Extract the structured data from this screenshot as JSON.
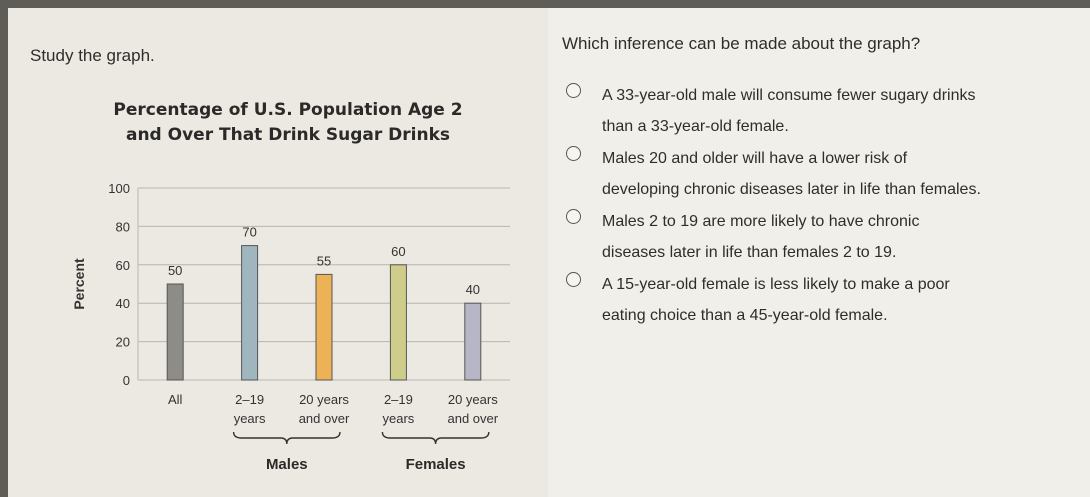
{
  "prompt": "Study the graph.",
  "chart_title": [
    "Percentage of U.S. Population Age 2",
    "and Over That Drink Sugar Drinks"
  ],
  "question": "Which inference can be made about the graph?",
  "options": [
    {
      "lines": [
        "A 33-year-old male will consume fewer sugary drinks",
        "than a 33-year-old female."
      ]
    },
    {
      "lines": [
        "Males 20 and older will have a lower risk of",
        "developing chronic diseases later in life than females."
      ]
    },
    {
      "lines": [
        "Males 2 to 19 are more likely to have chronic",
        "diseases later in life than females 2 to 19."
      ]
    },
    {
      "lines": [
        "A 15-year-old female is less likely to make a poor",
        "eating choice than a 45-year-old female."
      ]
    }
  ],
  "colors": {
    "bar_all": "#8d8c86",
    "bar_male_young": "#9fb6bf",
    "bar_male_adult": "#eeb256",
    "bar_female_young": "#cfcd8b",
    "bar_female_adult": "#b7b6c7"
  },
  "chart_data": {
    "type": "bar",
    "title": "Percentage of U.S. Population Age 2 and Over That Drink Sugar Drinks",
    "ylabel": "Percent",
    "xlabel": "",
    "ylim": [
      0,
      100
    ],
    "yticks": [
      0,
      20,
      40,
      60,
      80,
      100
    ],
    "grid": true,
    "categories": [
      {
        "lines": [
          "All"
        ]
      },
      {
        "lines": [
          "2–19",
          "years"
        ]
      },
      {
        "lines": [
          "20 years",
          "and over"
        ]
      },
      {
        "lines": [
          "2–19",
          "years"
        ]
      },
      {
        "lines": [
          "20 years",
          "and over"
        ]
      }
    ],
    "values": [
      50,
      70,
      55,
      60,
      40
    ],
    "data_labels": [
      "50",
      "70",
      "55",
      "60",
      "40"
    ],
    "groups": [
      {
        "name": "Males",
        "members": [
          1,
          2
        ]
      },
      {
        "name": "Females",
        "members": [
          3,
          4
        ]
      }
    ]
  }
}
